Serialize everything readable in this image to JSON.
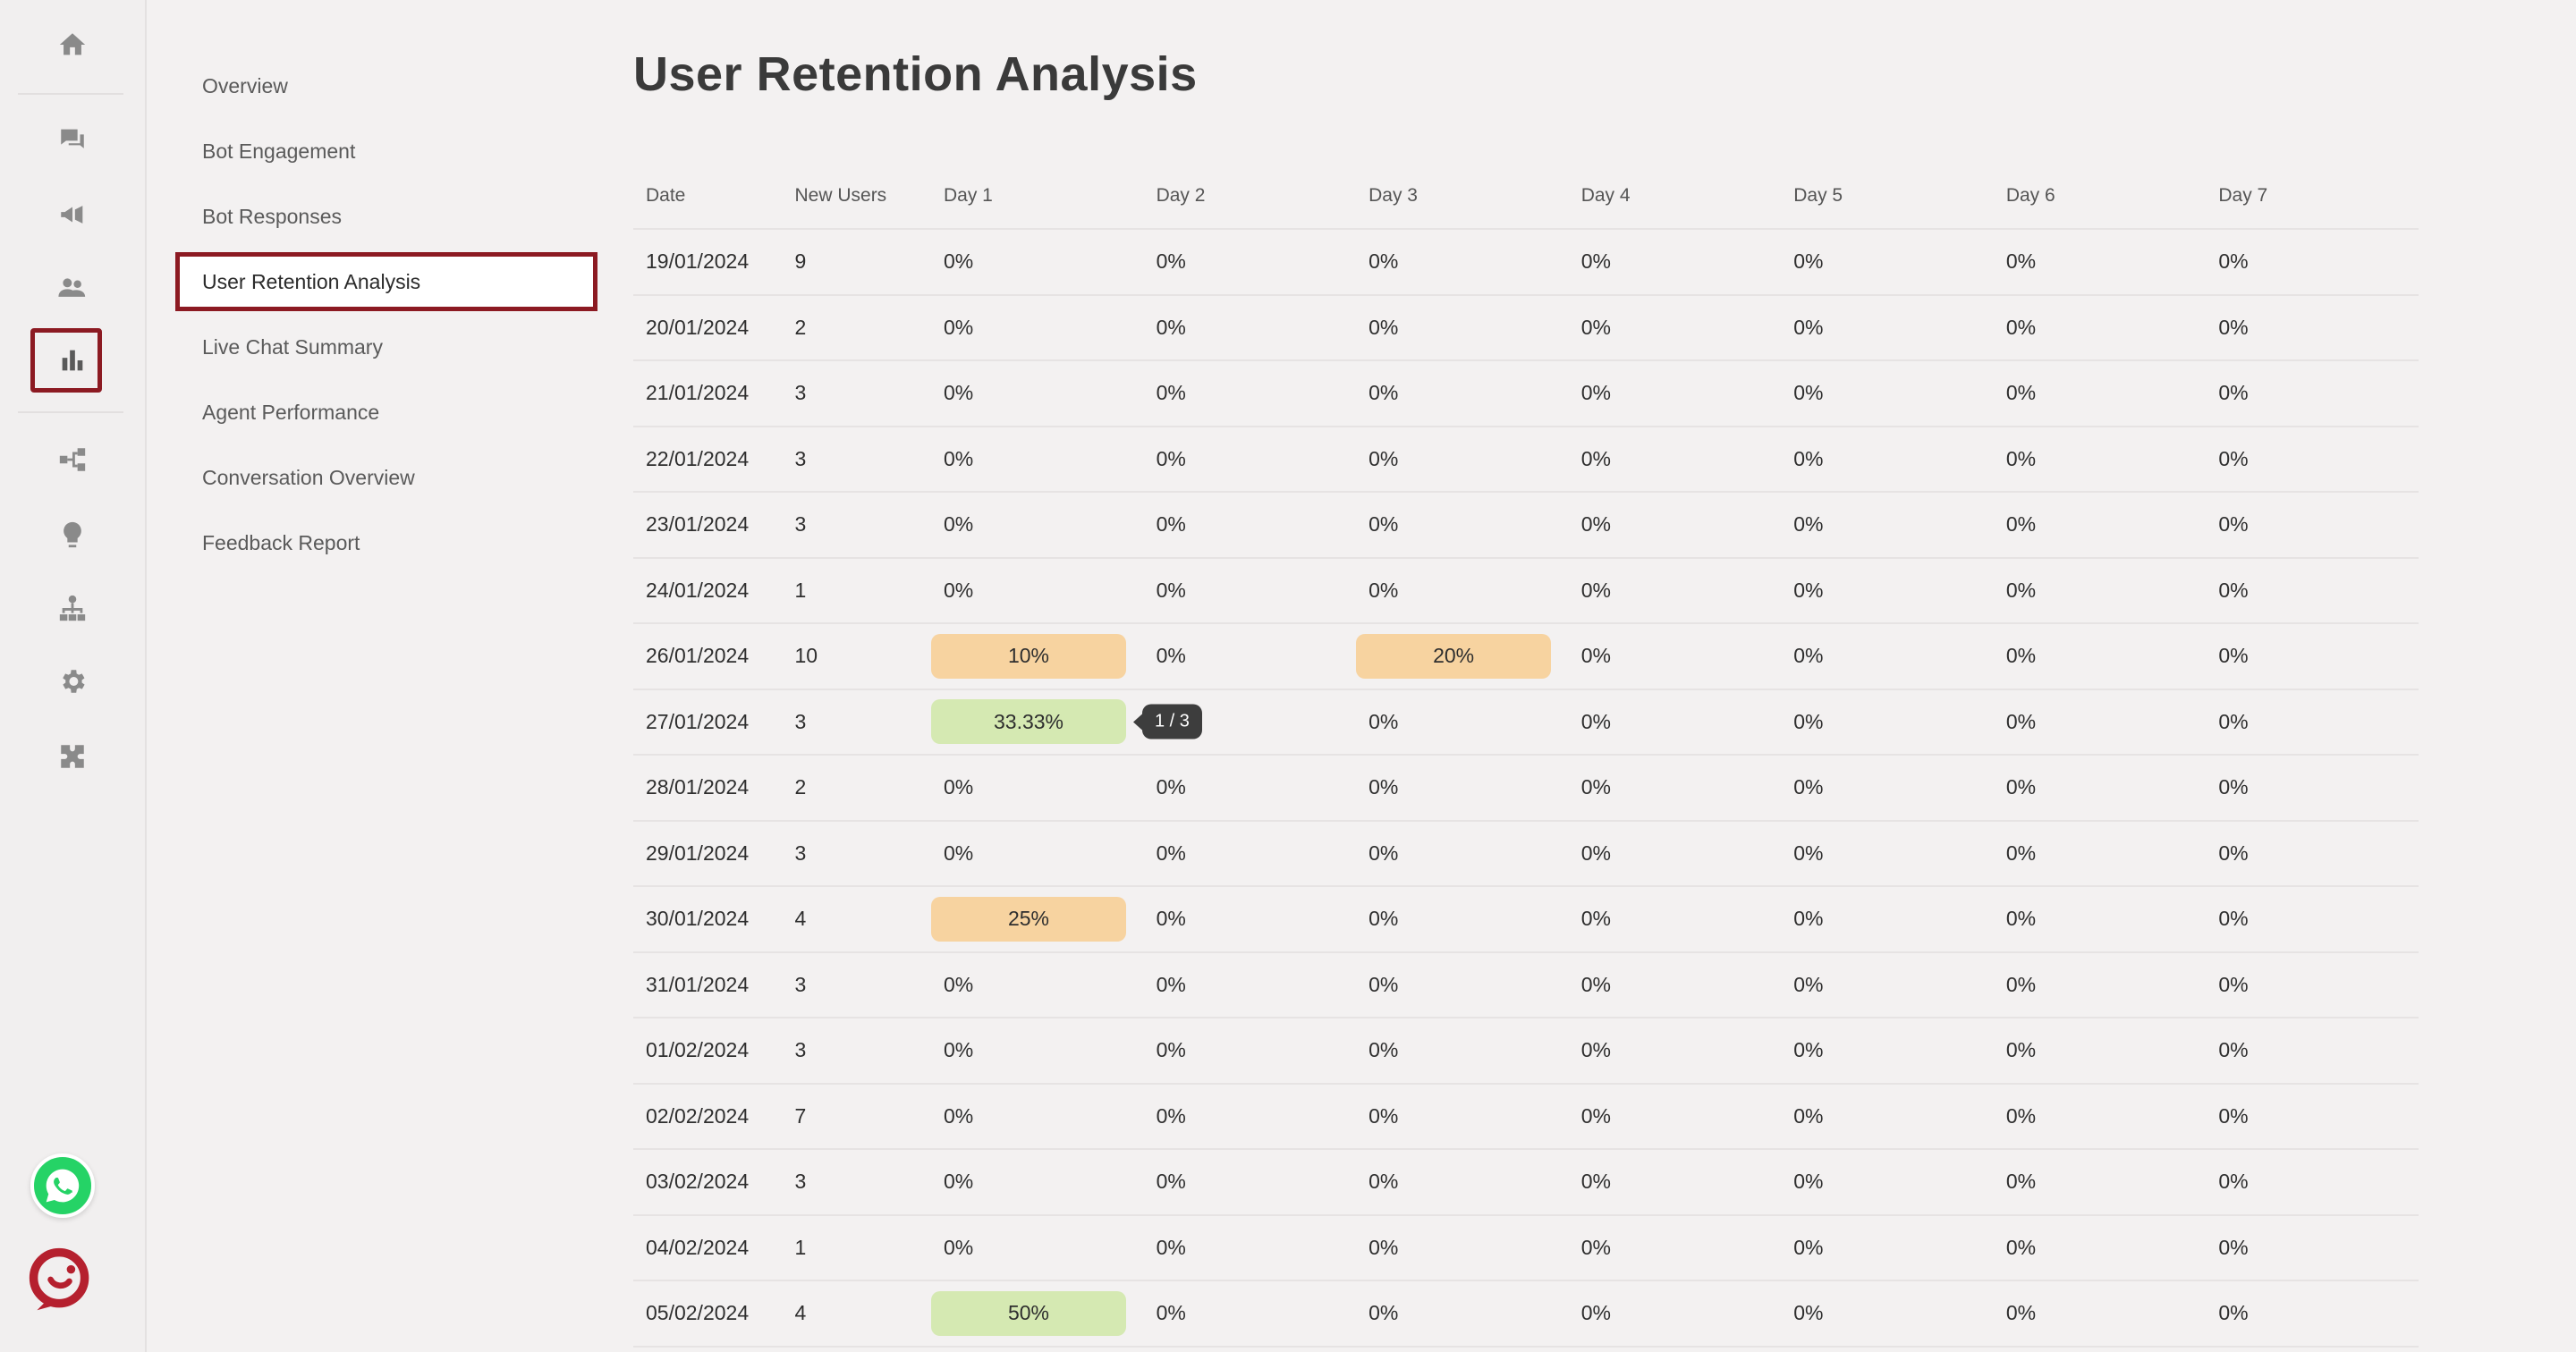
{
  "sidebar": {
    "icons": [
      "home-icon",
      "chat-icon",
      "megaphone-icon",
      "users-icon",
      "bar-chart-icon",
      "flow-icon",
      "lightbulb-icon",
      "hierarchy-icon",
      "gear-icon",
      "puzzle-icon"
    ],
    "active_icon": "bar-chart-icon",
    "badges": [
      "whatsapp-icon",
      "brand-logo-icon"
    ]
  },
  "subnav": {
    "items": [
      {
        "label": "Overview"
      },
      {
        "label": "Bot Engagement"
      },
      {
        "label": "Bot Responses"
      },
      {
        "label": "User Retention Analysis"
      },
      {
        "label": "Live Chat Summary"
      },
      {
        "label": "Agent Performance"
      },
      {
        "label": "Conversation Overview"
      },
      {
        "label": "Feedback Report"
      }
    ],
    "active_index": 3
  },
  "page": {
    "title": "User Retention Analysis"
  },
  "colors": {
    "accent": "#8c1a22",
    "pill_orange": "#f7d3a0",
    "pill_green": "#d5e9b2",
    "tooltip_bg": "#3d3d3d"
  },
  "table": {
    "headers": [
      "Date",
      "New Users",
      "Day 1",
      "Day 2",
      "Day 3",
      "Day 4",
      "Day 5",
      "Day 6",
      "Day 7"
    ],
    "rows": [
      {
        "date": "19/01/2024",
        "new_users": "9",
        "days": [
          "0%",
          "0%",
          "0%",
          "0%",
          "0%",
          "0%",
          "0%"
        ]
      },
      {
        "date": "20/01/2024",
        "new_users": "2",
        "days": [
          "0%",
          "0%",
          "0%",
          "0%",
          "0%",
          "0%",
          "0%"
        ]
      },
      {
        "date": "21/01/2024",
        "new_users": "3",
        "days": [
          "0%",
          "0%",
          "0%",
          "0%",
          "0%",
          "0%",
          "0%"
        ]
      },
      {
        "date": "22/01/2024",
        "new_users": "3",
        "days": [
          "0%",
          "0%",
          "0%",
          "0%",
          "0%",
          "0%",
          "0%"
        ]
      },
      {
        "date": "23/01/2024",
        "new_users": "3",
        "days": [
          "0%",
          "0%",
          "0%",
          "0%",
          "0%",
          "0%",
          "0%"
        ]
      },
      {
        "date": "24/01/2024",
        "new_users": "1",
        "days": [
          "0%",
          "0%",
          "0%",
          "0%",
          "0%",
          "0%",
          "0%"
        ]
      },
      {
        "date": "26/01/2024",
        "new_users": "10",
        "days": [
          "10%",
          "0%",
          "20%",
          "0%",
          "0%",
          "0%",
          "0%"
        ],
        "highlights": {
          "0": "orange",
          "2": "orange"
        }
      },
      {
        "date": "27/01/2024",
        "new_users": "3",
        "days": [
          "33.33%",
          "0%",
          "0%",
          "0%",
          "0%",
          "0%",
          "0%"
        ],
        "highlights": {
          "0": "green"
        },
        "tooltip": {
          "col": 0,
          "text": "1 / 3"
        }
      },
      {
        "date": "28/01/2024",
        "new_users": "2",
        "days": [
          "0%",
          "0%",
          "0%",
          "0%",
          "0%",
          "0%",
          "0%"
        ]
      },
      {
        "date": "29/01/2024",
        "new_users": "3",
        "days": [
          "0%",
          "0%",
          "0%",
          "0%",
          "0%",
          "0%",
          "0%"
        ]
      },
      {
        "date": "30/01/2024",
        "new_users": "4",
        "days": [
          "25%",
          "0%",
          "0%",
          "0%",
          "0%",
          "0%",
          "0%"
        ],
        "highlights": {
          "0": "orange"
        }
      },
      {
        "date": "31/01/2024",
        "new_users": "3",
        "days": [
          "0%",
          "0%",
          "0%",
          "0%",
          "0%",
          "0%",
          "0%"
        ]
      },
      {
        "date": "01/02/2024",
        "new_users": "3",
        "days": [
          "0%",
          "0%",
          "0%",
          "0%",
          "0%",
          "0%",
          "0%"
        ]
      },
      {
        "date": "02/02/2024",
        "new_users": "7",
        "days": [
          "0%",
          "0%",
          "0%",
          "0%",
          "0%",
          "0%",
          "0%"
        ]
      },
      {
        "date": "03/02/2024",
        "new_users": "3",
        "days": [
          "0%",
          "0%",
          "0%",
          "0%",
          "0%",
          "0%",
          "0%"
        ]
      },
      {
        "date": "04/02/2024",
        "new_users": "1",
        "days": [
          "0%",
          "0%",
          "0%",
          "0%",
          "0%",
          "0%",
          "0%"
        ]
      },
      {
        "date": "05/02/2024",
        "new_users": "4",
        "days": [
          "50%",
          "0%",
          "0%",
          "0%",
          "0%",
          "0%",
          "0%"
        ],
        "highlights": {
          "0": "green"
        }
      }
    ]
  }
}
